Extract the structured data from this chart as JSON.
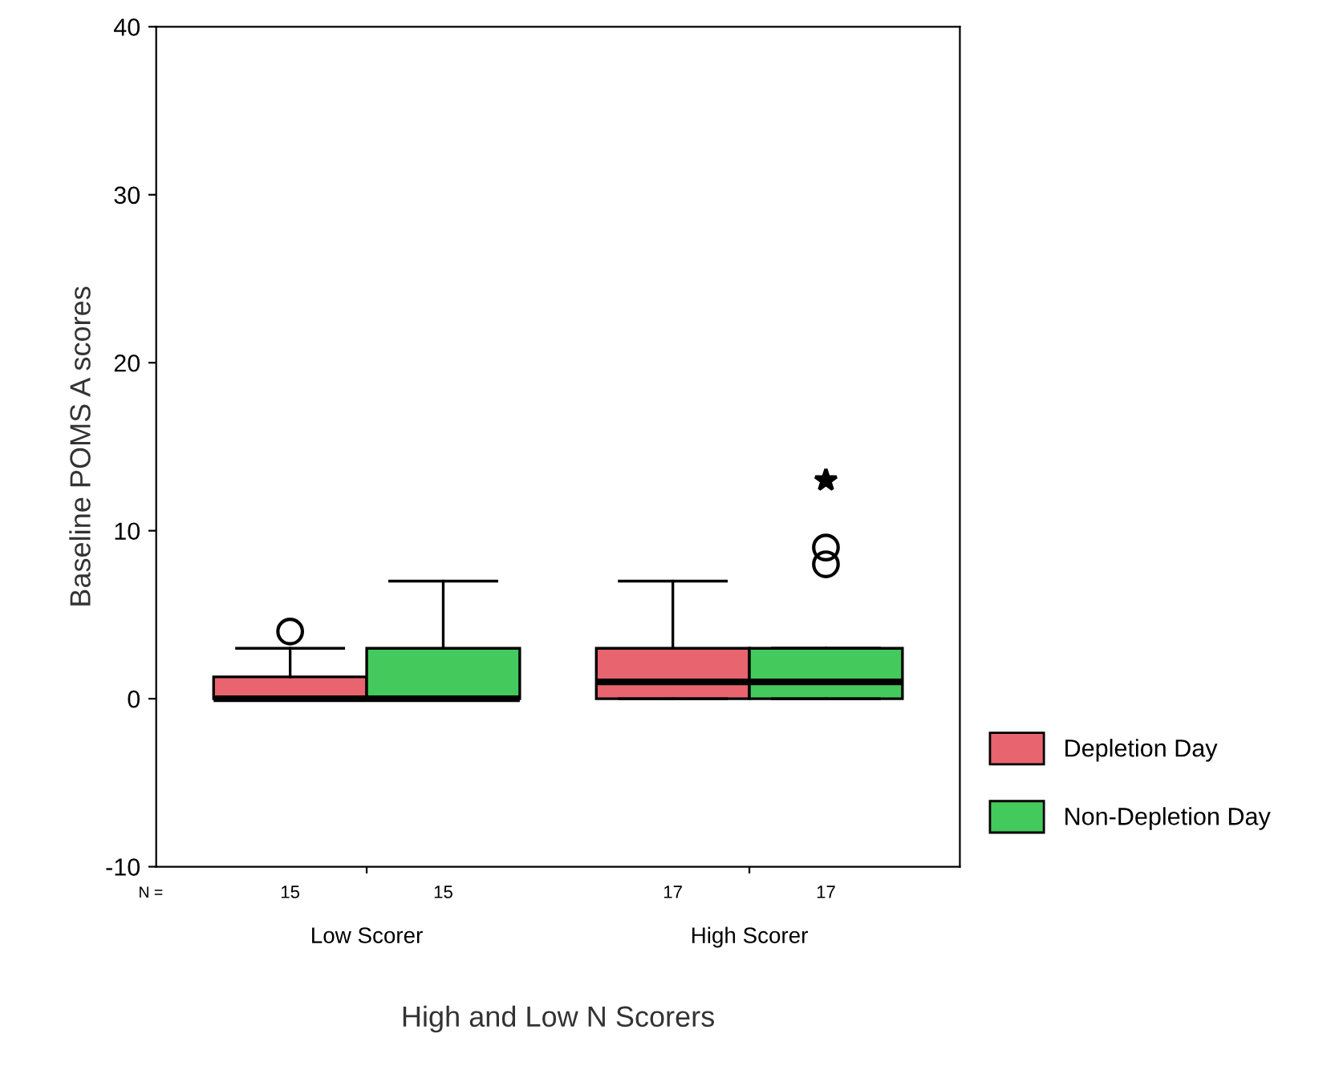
{
  "chart_data": {
    "type": "box",
    "xlabel": "High and Low N Scorers",
    "ylabel": "Baseline POMS A scores",
    "categories": [
      "Low Scorer",
      "High Scorer"
    ],
    "series": [
      {
        "name": "Depletion Day",
        "color": "#e8646e",
        "boxes": [
          {
            "low": 0,
            "q1": 0,
            "median": 0,
            "q3": 1.3,
            "high": 3,
            "outliers": [
              4
            ]
          },
          {
            "low": 0,
            "q1": 0,
            "median": 1,
            "q3": 3,
            "high": 7
          }
        ]
      },
      {
        "name": "Non-Depletion Day",
        "color": "#44c95c",
        "boxes": [
          {
            "low": 0,
            "q1": 0,
            "median": 0,
            "q3": 3,
            "high": 7
          },
          {
            "low": 0,
            "q1": 0,
            "median": 1,
            "q3": 3,
            "high": 3,
            "outliers": [
              8,
              9,
              13
            ]
          }
        ]
      }
    ],
    "ylim": [
      -10,
      40
    ],
    "yticks": [
      -10,
      0,
      10,
      20,
      30,
      40
    ],
    "annotations": [
      "N =",
      "15",
      "15",
      "17",
      "17"
    ],
    "legend": "right",
    "grid": false
  }
}
